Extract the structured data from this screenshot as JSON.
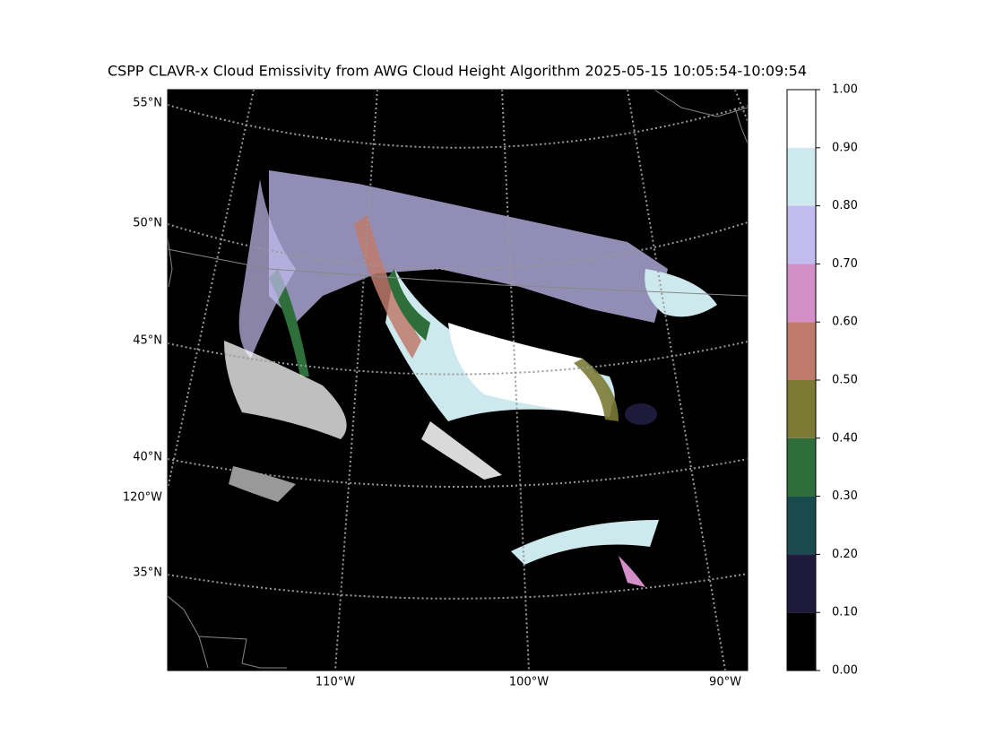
{
  "title": "CSPP CLAVR-x Cloud Emissivity from AWG Cloud Height Algorithm 2025-05-15 10:05:54-10:09:54",
  "latitude_labels": [
    "55°N",
    "50°N",
    "45°N",
    "40°N",
    "35°N"
  ],
  "left_longitude_labels": [
    "120°W"
  ],
  "bottom_longitude_labels": [
    "110°W",
    "100°W",
    "90°W"
  ],
  "colorbar": {
    "lim": [
      0,
      1
    ],
    "ticks": [
      {
        "value": 0,
        "label": "0.00"
      },
      {
        "value": 0.1,
        "label": "0.10"
      },
      {
        "value": 0.2,
        "label": "0.20"
      },
      {
        "value": 0.3,
        "label": "0.30"
      },
      {
        "value": 0.4,
        "label": "0.40"
      },
      {
        "value": 0.5,
        "label": "0.50"
      },
      {
        "value": 0.6,
        "label": "0.60"
      },
      {
        "value": 0.7,
        "label": "0.70"
      },
      {
        "value": 0.8,
        "label": "0.80"
      },
      {
        "value": 0.9,
        "label": "0.90"
      },
      {
        "value": 1,
        "label": "1.00"
      }
    ],
    "colors": [
      "#000000",
      "#1e1a3c",
      "#194a4d",
      "#2e6e3a",
      "#7a7a35",
      "#c07a6c",
      "#d48fc8",
      "#c3bcf0",
      "#cde9ee",
      "#ffffff"
    ]
  }
}
